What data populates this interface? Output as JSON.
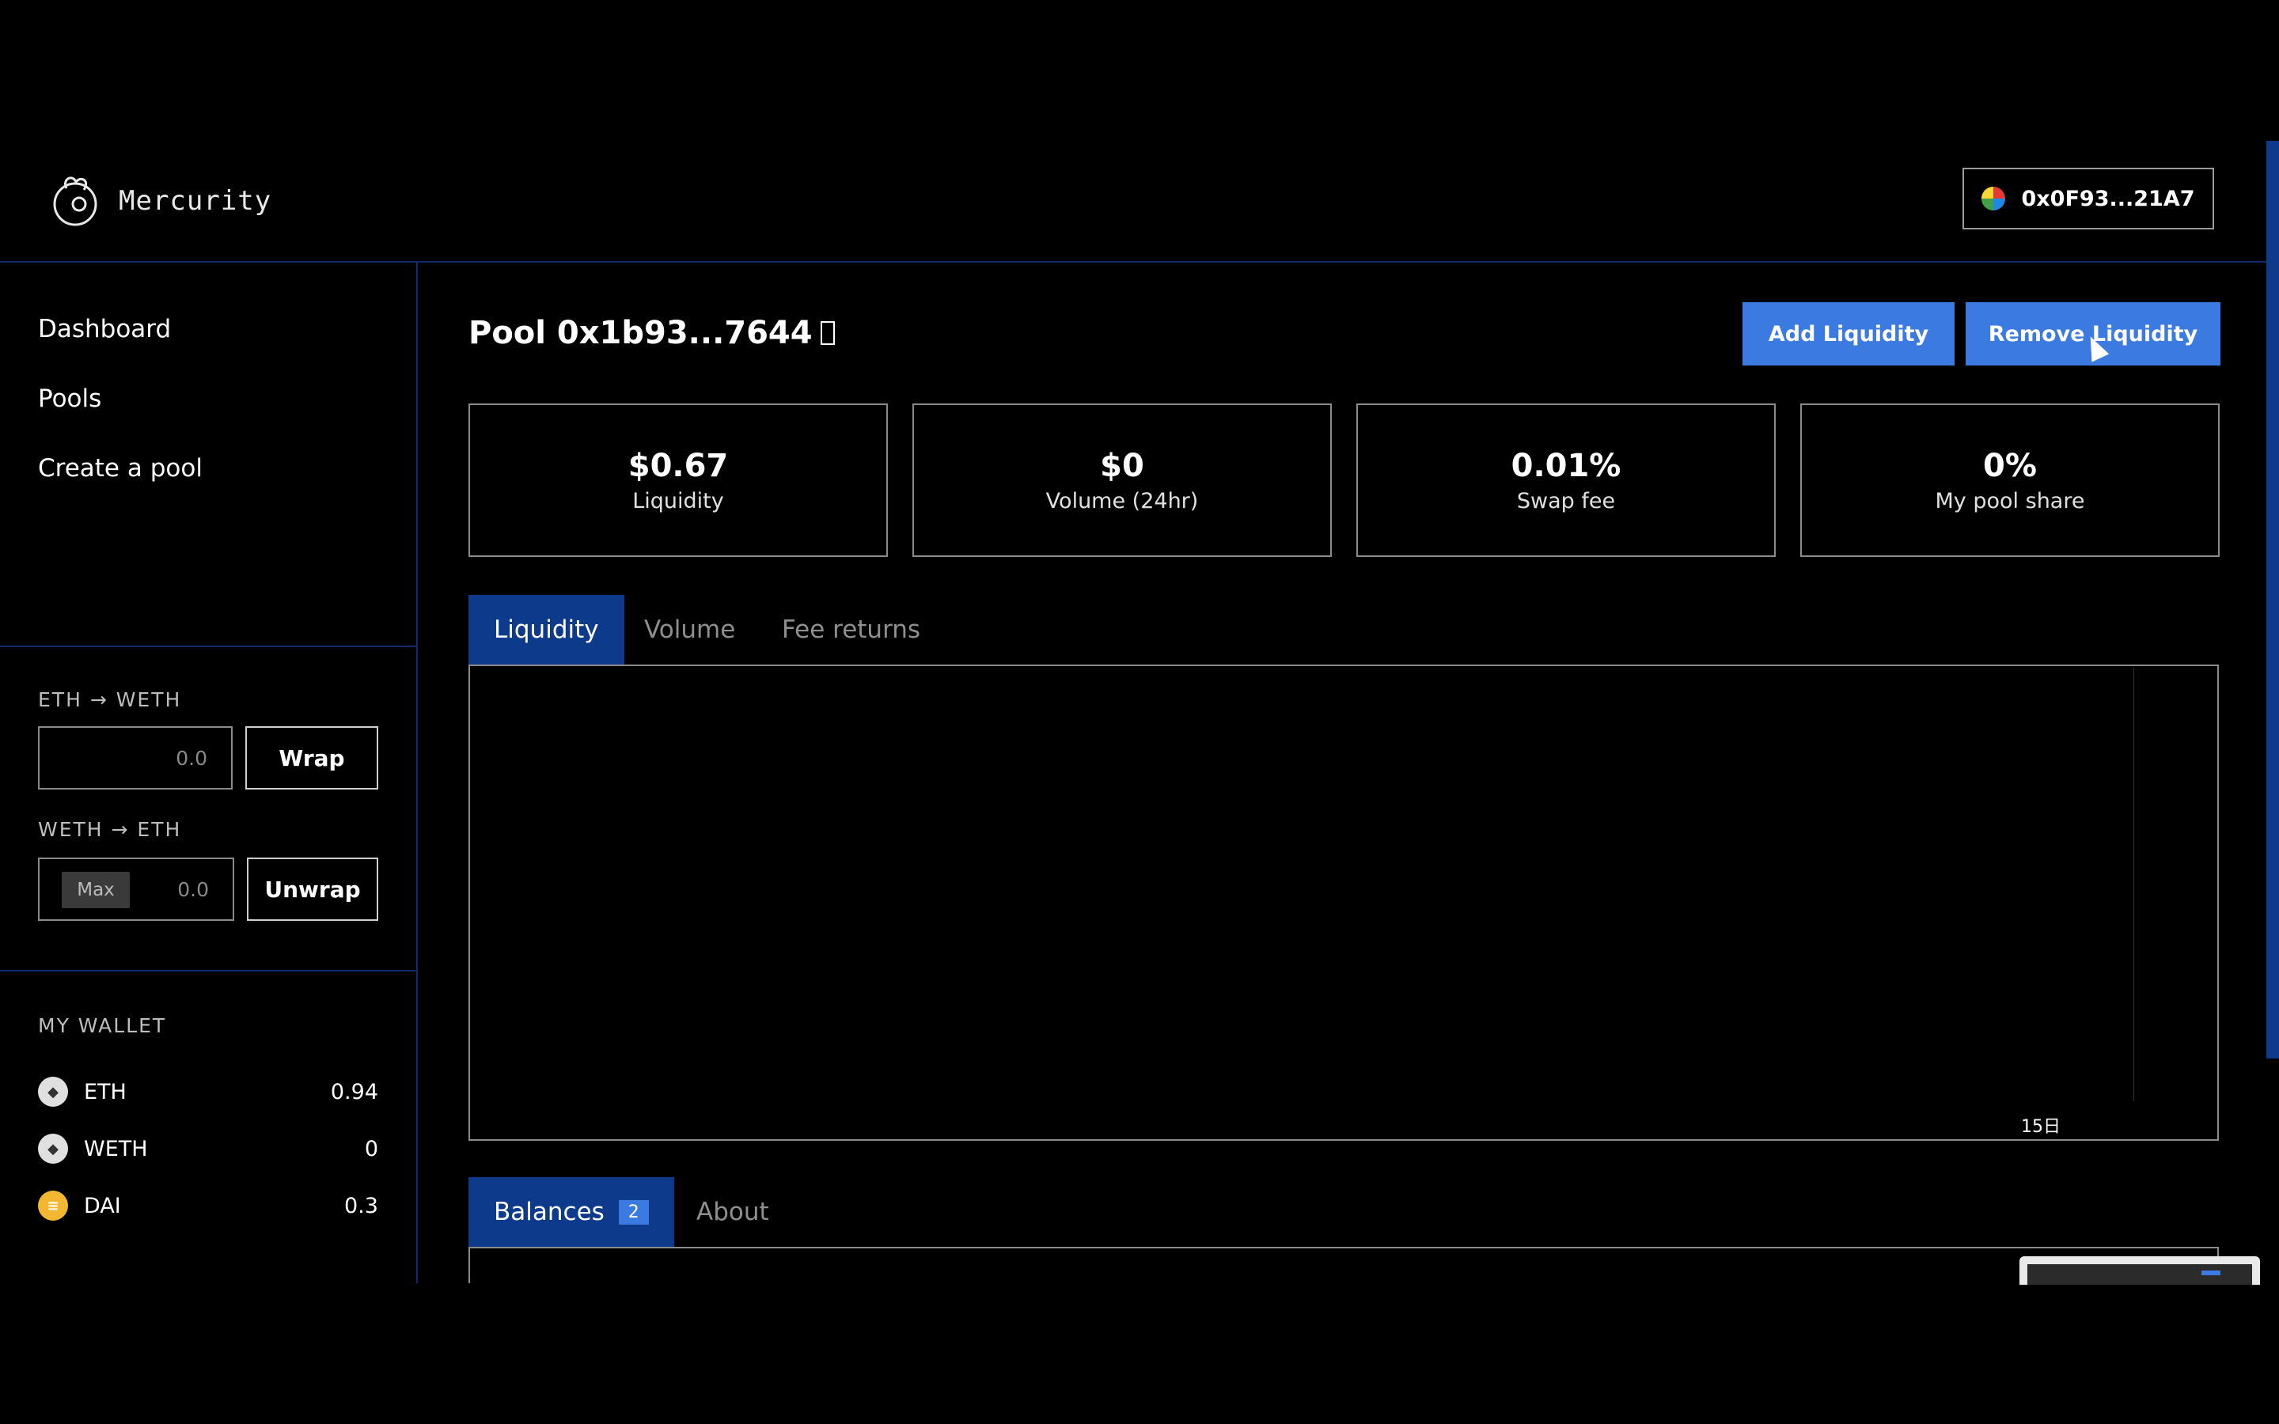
{
  "app": {
    "name": "Mercurity"
  },
  "account": {
    "address": "0x0F93...21A7"
  },
  "sidebar": {
    "nav": [
      {
        "label": "Dashboard"
      },
      {
        "label": "Pools"
      },
      {
        "label": "Create a pool"
      }
    ],
    "wrap": {
      "eth_to_weth_label": "ETH → WETH",
      "eth_placeholder": "0.0",
      "wrap_button": "Wrap",
      "weth_to_eth_label": "WETH → ETH",
      "max_button": "Max",
      "weth_placeholder": "0.0",
      "unwrap_button": "Unwrap"
    },
    "wallet": {
      "title": "MY WALLET",
      "tokens": [
        {
          "symbol": "ETH",
          "amount": "0.94",
          "icon": "eth-icon"
        },
        {
          "symbol": "WETH",
          "amount": "0",
          "icon": "weth-icon"
        },
        {
          "symbol": "DAI",
          "amount": "0.3",
          "icon": "dai-icon"
        }
      ]
    }
  },
  "pool": {
    "title": "Pool 0x1b93...7644",
    "add_liquidity": "Add Liquidity",
    "remove_liquidity": "Remove Liquidity",
    "stats": [
      {
        "value": "$0.67",
        "label": "Liquidity"
      },
      {
        "value": "$0",
        "label": "Volume (24hr)"
      },
      {
        "value": "0.01%",
        "label": "Swap fee"
      },
      {
        "value": "0%",
        "label": "My pool share"
      }
    ],
    "chart_tabs": [
      {
        "label": "Liquidity",
        "active": true
      },
      {
        "label": "Volume",
        "active": false
      },
      {
        "label": "Fee returns",
        "active": false
      }
    ],
    "bottom_tabs": {
      "balances": "Balances",
      "balances_count": "2",
      "about": "About"
    }
  },
  "chart_data": {
    "type": "line",
    "x": [
      "15日"
    ],
    "series": [],
    "title": "",
    "xlabel": "",
    "ylabel": ""
  },
  "colors": {
    "accent": "#3b7ae0",
    "tab_active": "#0d3a8a",
    "border_blue": "#0f2a6e",
    "dai": "#f4b731"
  }
}
